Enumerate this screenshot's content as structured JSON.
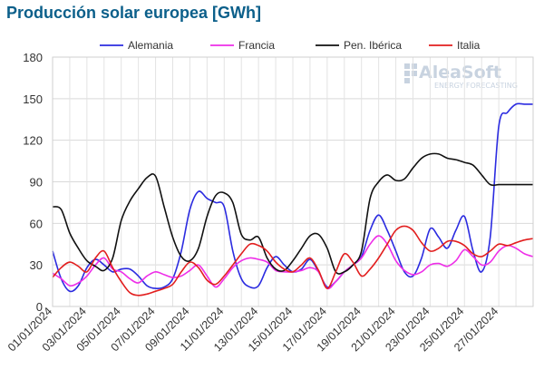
{
  "chart_data": {
    "type": "line",
    "title": "Producción solar europea [GWh]",
    "xlabel": "",
    "ylabel": "",
    "ylim": [
      0,
      180
    ],
    "yticks": [
      0,
      30,
      60,
      90,
      120,
      150,
      180
    ],
    "grid": true,
    "legend": "top",
    "x_labels": [
      "01/01/2024",
      "03/01/2024",
      "05/01/2024",
      "07/01/2024",
      "09/01/2024",
      "11/01/2024",
      "13/01/2024",
      "15/01/2024",
      "17/01/2024",
      "19/01/2024",
      "21/01/2024",
      "23/01/2024",
      "25/01/2024",
      "27/01/2024"
    ],
    "x_days": [
      1,
      1.5,
      2,
      2.5,
      3,
      3.5,
      4,
      4.5,
      5,
      5.5,
      6,
      6.5,
      7,
      7.5,
      8,
      8.5,
      9,
      9.5,
      10,
      10.5,
      11,
      11.5,
      12,
      12.5,
      13,
      13.5,
      14,
      14.5,
      15,
      15.5,
      16,
      16.5,
      17,
      17.5,
      18,
      18.5,
      19,
      19.5,
      20,
      20.5,
      21,
      21.5,
      22,
      22.5,
      23,
      23.5,
      24,
      24.5,
      25,
      25.5,
      26,
      26.5,
      27,
      27.5,
      28,
      28.5,
      29
    ],
    "series": [
      {
        "name": "Alemania",
        "color": "#2b2be0",
        "values": [
          40,
          20,
          11,
          15,
          28,
          34,
          30,
          25,
          27,
          27,
          22,
          15,
          13,
          14,
          20,
          40,
          70,
          83,
          78,
          75,
          72,
          40,
          20,
          14,
          15,
          28,
          36,
          30,
          25,
          27,
          34,
          25,
          14,
          18,
          25,
          30,
          36,
          55,
          66,
          55,
          40,
          25,
          22,
          35,
          56,
          50,
          42,
          55,
          65,
          40,
          25,
          50,
          130,
          140,
          146,
          146,
          146
        ]
      },
      {
        "name": "Francia",
        "color": "#ee2ee8",
        "values": [
          24,
          20,
          15,
          17,
          22,
          30,
          35,
          27,
          25,
          20,
          17,
          22,
          25,
          23,
          21,
          22,
          26,
          30,
          22,
          14,
          20,
          28,
          33,
          35,
          34,
          32,
          26,
          25,
          25,
          26,
          28,
          25,
          13,
          18,
          25,
          30,
          35,
          45,
          51,
          45,
          33,
          26,
          23,
          25,
          30,
          31,
          29,
          33,
          41,
          36,
          30,
          32,
          40,
          44,
          42,
          38,
          36
        ]
      },
      {
        "name": "Pen. Ibérica",
        "color": "#111111",
        "values": [
          72,
          70,
          53,
          42,
          33,
          29,
          26,
          35,
          62,
          76,
          85,
          93,
          94,
          72,
          50,
          36,
          33,
          42,
          65,
          80,
          82,
          75,
          52,
          48,
          50,
          35,
          27,
          26,
          33,
          42,
          51,
          52,
          42,
          25,
          25,
          30,
          40,
          78,
          90,
          95,
          91,
          92,
          100,
          107,
          110,
          110,
          107,
          106,
          104,
          102,
          95,
          88,
          88,
          88,
          88,
          88,
          88
        ]
      },
      {
        "name": "Italia",
        "color": "#e21f1f",
        "values": [
          21,
          28,
          32,
          29,
          25,
          35,
          40,
          28,
          18,
          10,
          8,
          9,
          11,
          13,
          16,
          25,
          32,
          28,
          19,
          16,
          22,
          30,
          38,
          45,
          44,
          40,
          32,
          27,
          25,
          30,
          35,
          26,
          13,
          25,
          38,
          32,
          22,
          27,
          35,
          45,
          55,
          58,
          55,
          46,
          40,
          42,
          47,
          47,
          44,
          38,
          36,
          40,
          45,
          44,
          46,
          48,
          49
        ]
      }
    ]
  },
  "watermark": {
    "brand": "AleaSoft",
    "tagline": "ENERGY FORECASTING"
  }
}
